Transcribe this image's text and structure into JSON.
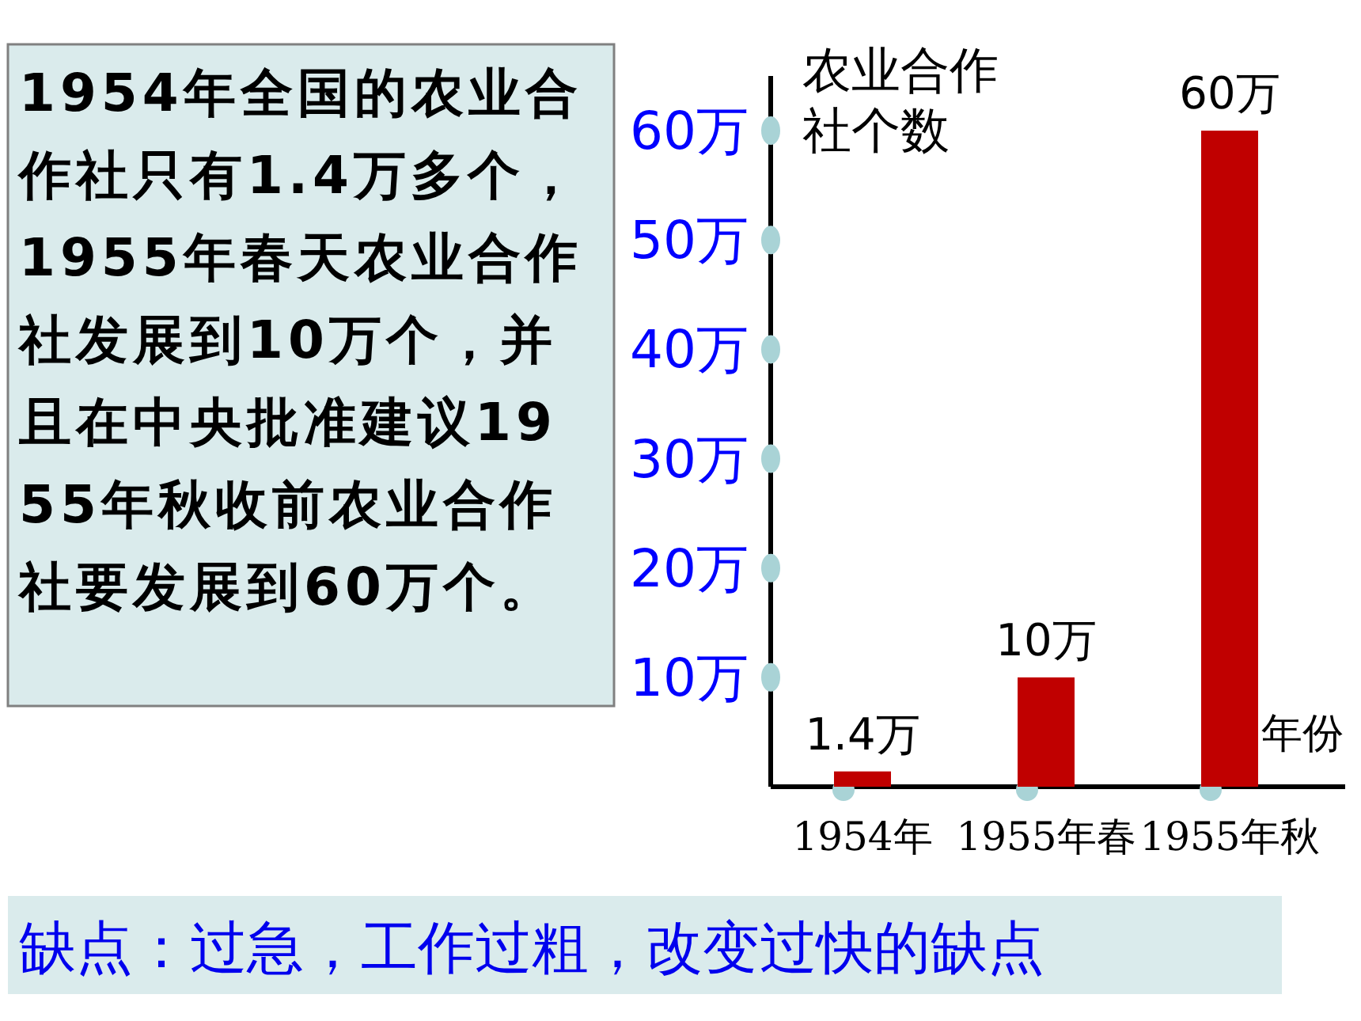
{
  "chart_data": {
    "type": "bar",
    "categories": [
      "1954年",
      "1955年春",
      "1955年秋"
    ],
    "values": [
      1.4,
      10,
      60
    ],
    "color": "#c00000",
    "value_labels": [
      "1.4万",
      "10万",
      "60万"
    ],
    "ylabel": "农业合作社个数",
    "xlabel": "年份",
    "ylim": [
      0,
      65
    ],
    "yticks": [
      {
        "value": 10,
        "label": "10万"
      },
      {
        "value": 20,
        "label": "20万"
      },
      {
        "value": 30,
        "label": "30万"
      },
      {
        "value": 40,
        "label": "40万"
      },
      {
        "value": 50,
        "label": "50万"
      },
      {
        "value": 60,
        "label": "60万"
      }
    ],
    "annotations": [
      "1954年全国的农业合作社只有1.4万多个，1955年春天农业合作社发展到10万个，并且在中央批准建议1955年秋收前农业合作社要发展到60万个。",
      "缺点：过急，工作过粗，改变过快的缺点"
    ]
  }
}
